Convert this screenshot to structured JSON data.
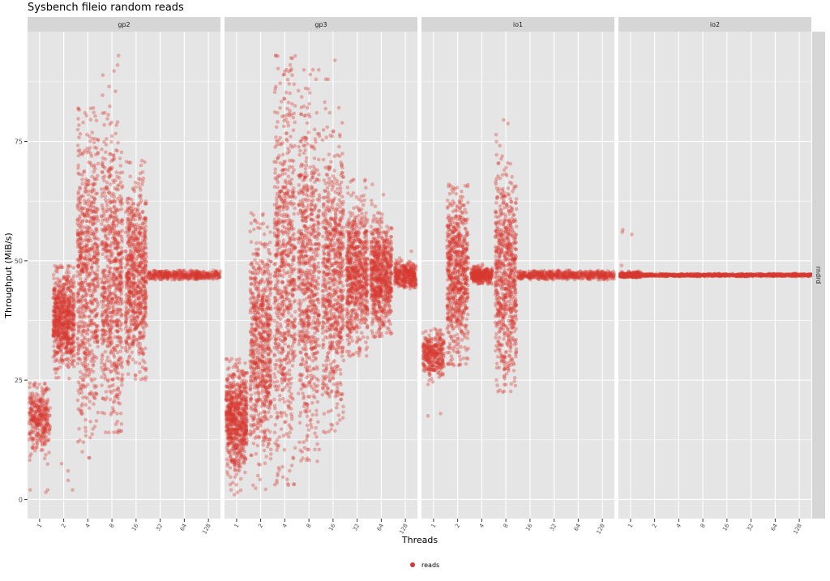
{
  "chart_data": {
    "type": "scatter",
    "title": "Sysbench fileio random reads",
    "xlabel": "Threads",
    "ylabel": "Throughput (MiB/s)",
    "ylim": [
      -4,
      98
    ],
    "y_ticks": [
      0,
      25,
      50,
      75
    ],
    "x_ticks": [
      "1",
      "2",
      "4",
      "8",
      "16",
      "32",
      "64",
      "128"
    ],
    "panels": [
      "gp2",
      "gp3",
      "io1",
      "io2"
    ],
    "row_strip": "rndrd",
    "grid": true,
    "legend": {
      "position": "bottom",
      "entries": [
        "reads"
      ]
    },
    "colors": {
      "point": "#d73a32",
      "panel_bg": "#e5e5e5",
      "strip_bg": "#d6d6d6",
      "grid": "#ffffff"
    },
    "series": [
      {
        "name": "reads",
        "summary_by_panel": {
          "gp2": {
            "1": {
              "center": 17,
              "range": [
                1.5,
                24.5
              ],
              "outliers": [
                1.5,
                2,
                2
              ]
            },
            "2": {
              "center": 38,
              "range": [
                2,
                49
              ],
              "outliers": [
                2,
                4,
                6,
                7.5
              ]
            },
            "4": {
              "center": 47,
              "range": [
                8.5,
                82
              ],
              "outliers": [
                82,
                81,
                76,
                73,
                70,
                68,
                65,
                60,
                25,
                20,
                18,
                12,
                10
              ]
            },
            "8": {
              "center": 47,
              "range": [
                14,
                93
              ],
              "outliers": [
                93,
                91,
                86.5,
                85.5,
                81,
                79,
                72,
                60,
                38,
                30,
                27,
                22,
                18,
                14
              ]
            },
            "16": {
              "center": 47,
              "range": [
                25,
                71
              ],
              "outliers": [
                71,
                70,
                62,
                55,
                52,
                40,
                38,
                35,
                31,
                31
              ]
            },
            "32": {
              "center": 47,
              "range": [
                46,
                48
              ],
              "outliers": []
            },
            "64": {
              "center": 47,
              "range": [
                46,
                48
              ],
              "outliers": []
            },
            "128": {
              "center": 47,
              "range": [
                46,
                48
              ],
              "outliers": []
            }
          },
          "gp3": {
            "1": {
              "center": 17,
              "range": [
                1,
                29.5
              ],
              "outliers": [
                1,
                1.5,
                2
              ]
            },
            "2": {
              "center": 33,
              "range": [
                2,
                60
              ],
              "outliers": [
                60,
                58,
                56,
                3,
                5
              ]
            },
            "4": {
              "center": 47,
              "range": [
                3,
                93
              ],
              "outliers": [
                93,
                90,
                89,
                87,
                86,
                82,
                80,
                78,
                76,
                72,
                5,
                4,
                3
              ]
            },
            "8": {
              "center": 47,
              "range": [
                8,
                90
              ],
              "outliers": [
                90,
                89,
                88,
                86,
                81,
                75,
                70,
                65,
                30,
                25,
                20,
                15,
                12,
                10,
                8
              ]
            },
            "16": {
              "center": 47,
              "range": [
                14,
                92
              ],
              "outliers": [
                92,
                88,
                81,
                77,
                59,
                35,
                27,
                22,
                20,
                14
              ]
            },
            "32": {
              "center": 47,
              "range": [
                30,
                67
              ],
              "outliers": [
                67,
                60,
                56,
                30
              ]
            },
            "64": {
              "center": 47,
              "range": [
                34,
                66
              ],
              "outliers": [
                66,
                60,
                55,
                42,
                34
              ]
            },
            "128": {
              "center": 47,
              "range": [
                44,
                52
              ],
              "outliers": [
                52
              ]
            }
          },
          "io1": {
            "1": {
              "center": 30.5,
              "range": [
                17.5,
                36
              ],
              "outliers": [
                17.5,
                18
              ]
            },
            "2": {
              "center": 47,
              "range": [
                28,
                66
              ],
              "outliers": [
                66,
                65,
                61
              ]
            },
            "4": {
              "center": 47,
              "range": [
                45,
                49.5
              ],
              "outliers": []
            },
            "8": {
              "center": 47,
              "range": [
                22.5,
                79.5
              ],
              "outliers": [
                79.5,
                70.5,
                40,
                38,
                30,
                22.5
              ]
            },
            "16": {
              "center": 47,
              "range": [
                46,
                48
              ],
              "outliers": []
            },
            "32": {
              "center": 47,
              "range": [
                46,
                48
              ],
              "outliers": []
            },
            "64": {
              "center": 47,
              "range": [
                46,
                48
              ],
              "outliers": []
            },
            "128": {
              "center": 47,
              "range": [
                46,
                48
              ],
              "outliers": []
            }
          },
          "io2": {
            "1": {
              "center": 47,
              "range": [
                46.5,
                56.5
              ],
              "outliers": [
                56.5,
                56,
                55.5,
                49
              ]
            },
            "2": {
              "center": 47,
              "range": [
                46.7,
                47.3
              ],
              "outliers": []
            },
            "4": {
              "center": 47,
              "range": [
                46.7,
                47.3
              ],
              "outliers": []
            },
            "8": {
              "center": 47,
              "range": [
                46.7,
                47.3
              ],
              "outliers": []
            },
            "16": {
              "center": 47,
              "range": [
                46.7,
                47.3
              ],
              "outliers": []
            },
            "32": {
              "center": 47,
              "range": [
                46.7,
                47.3
              ],
              "outliers": []
            },
            "64": {
              "center": 47,
              "range": [
                46.7,
                47.3
              ],
              "outliers": []
            },
            "128": {
              "center": 47,
              "range": [
                46.7,
                47.3
              ],
              "outliers": []
            }
          }
        }
      }
    ]
  }
}
